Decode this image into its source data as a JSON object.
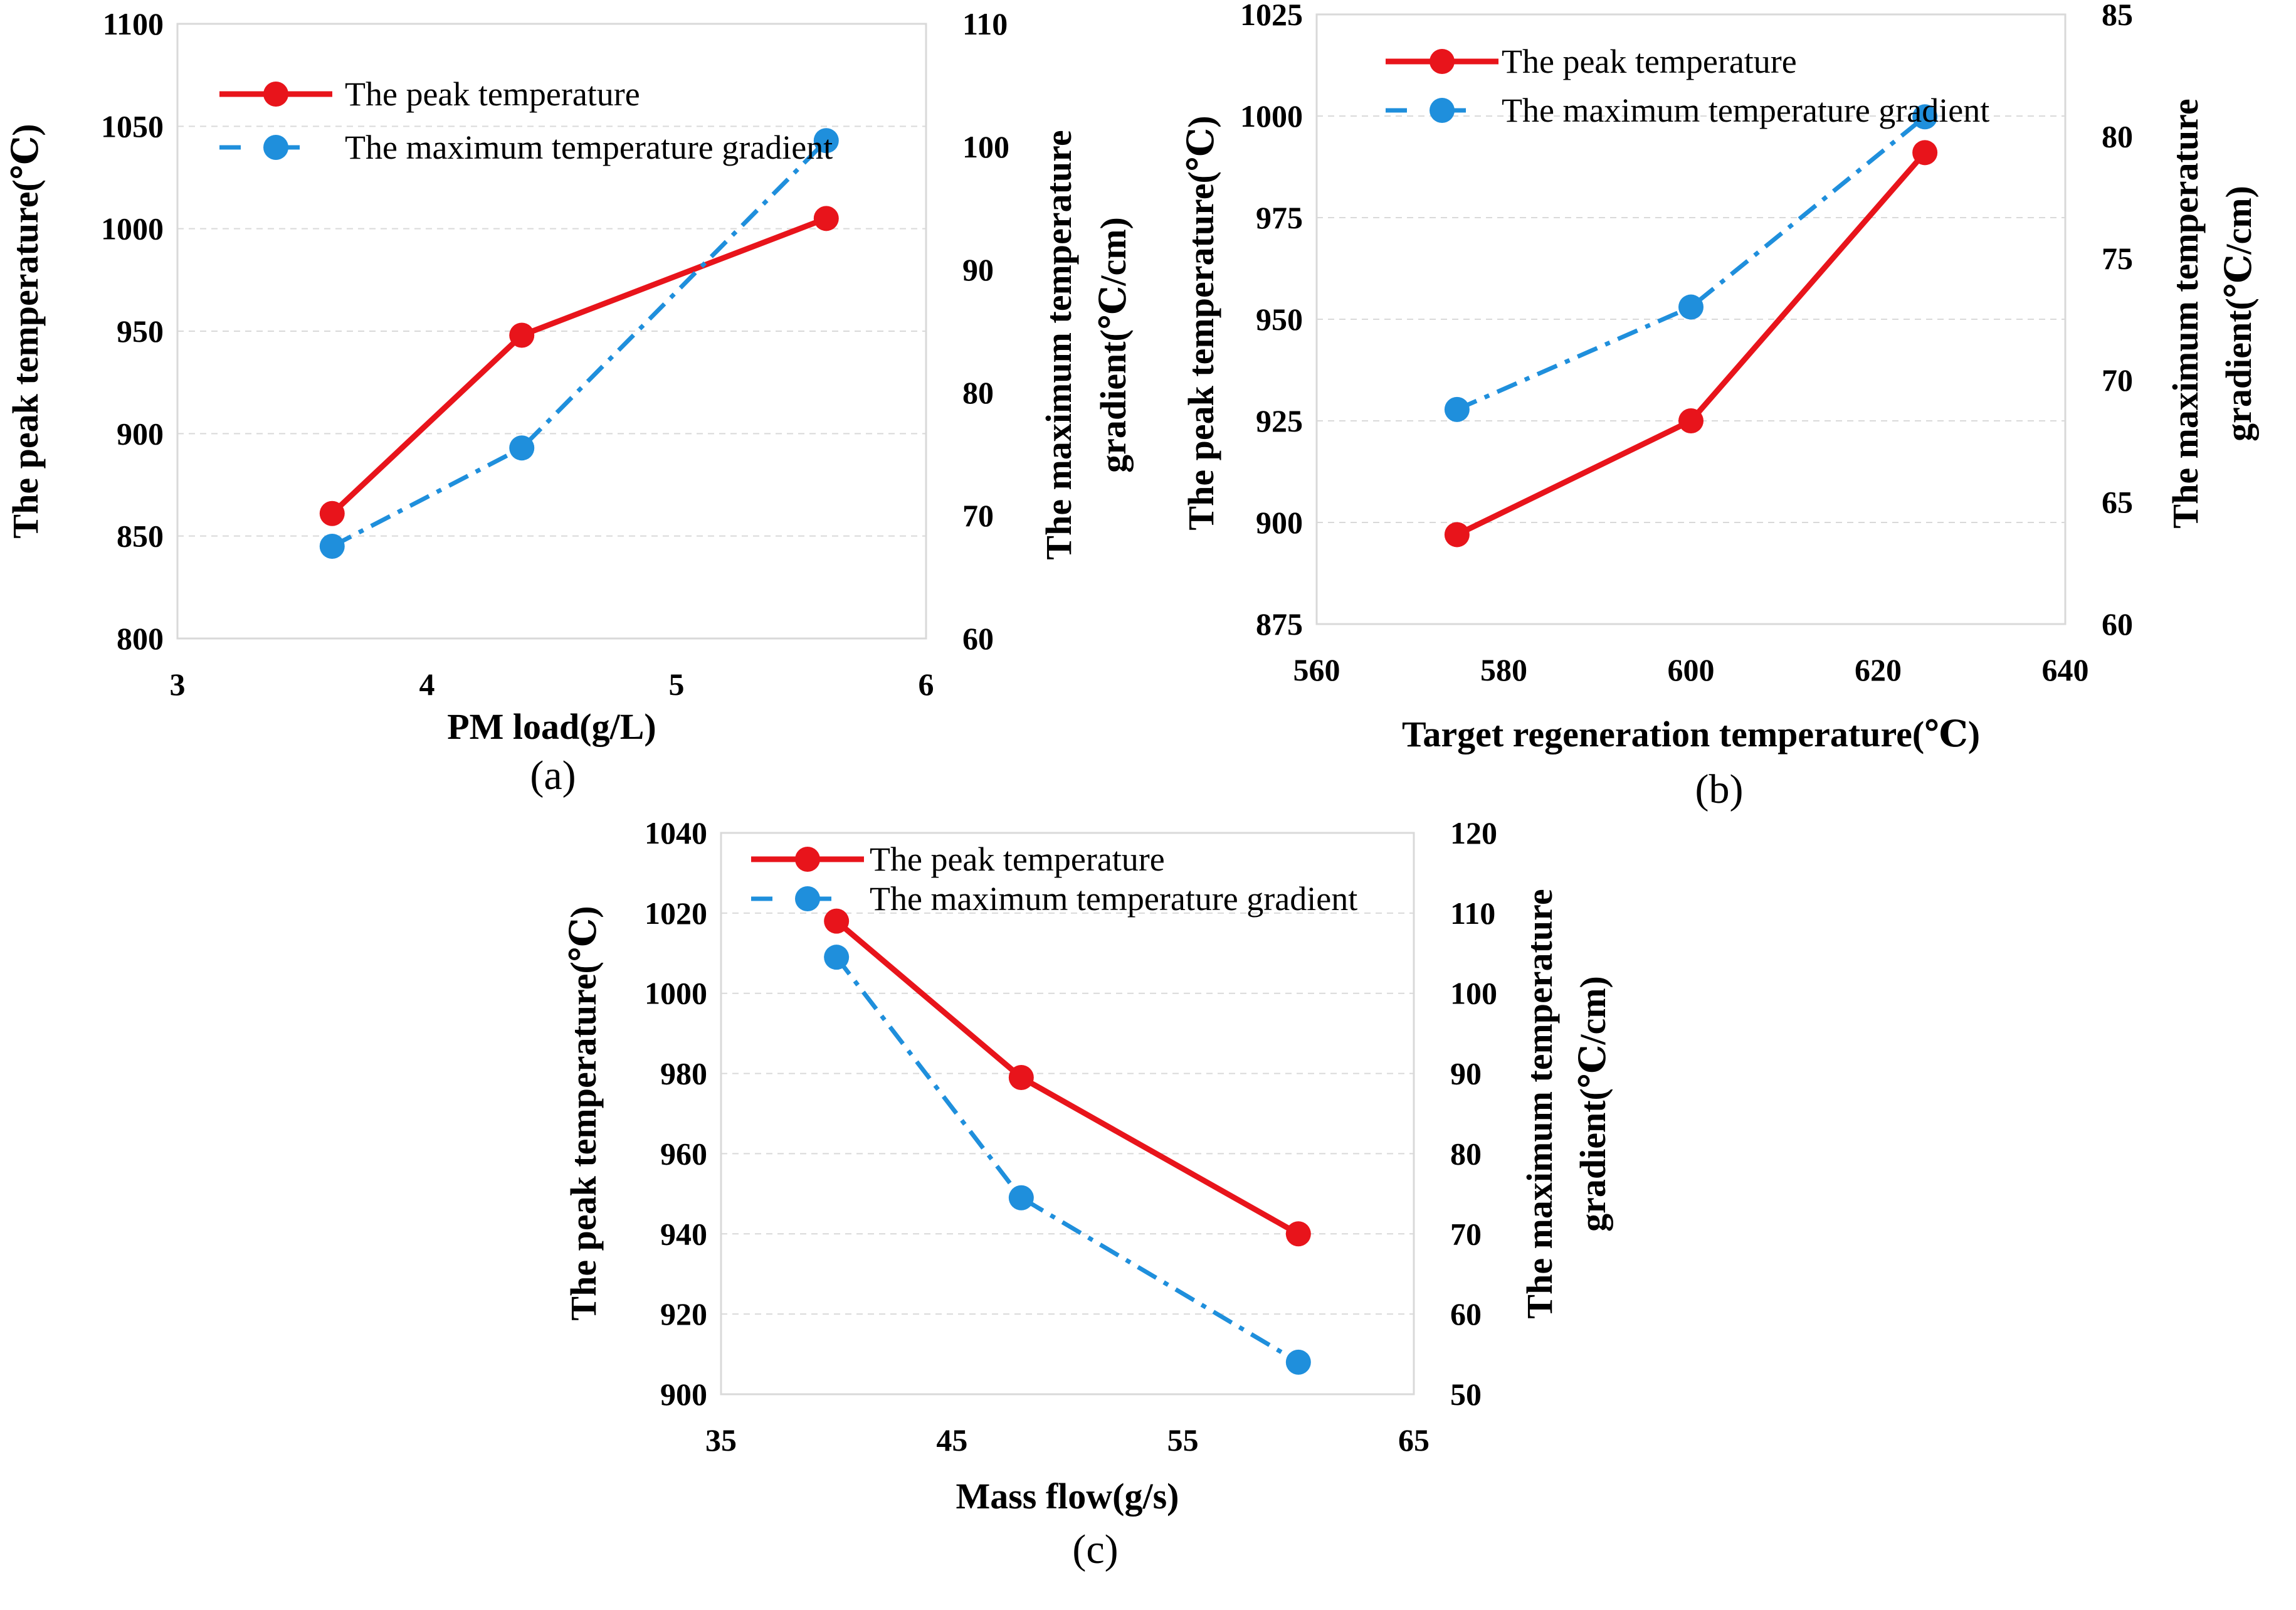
{
  "colors": {
    "peak": "#e8141b",
    "gradient": "#1f8fdc",
    "grid": "#d9d9d9",
    "frame": "#d9d9d9"
  },
  "chart_data": [
    {
      "type": "line",
      "panel_label": "(a)",
      "xlabel": "PM load(g/L)",
      "ylabel": "The peak temperature(℃)",
      "y2label_lines": [
        "The maximum temperature",
        "gradient(℃/cm)"
      ],
      "xlim": [
        3,
        6
      ],
      "xticks": [
        3,
        4,
        5,
        6
      ],
      "ylim": [
        800,
        1100
      ],
      "yticks": [
        800,
        850,
        900,
        950,
        1000,
        1050,
        1100
      ],
      "y2lim": [
        60,
        110
      ],
      "y2ticks": [
        60,
        70,
        80,
        90,
        100,
        110
      ],
      "legend_placement": "top-left",
      "series": [
        {
          "name": "The peak temperature",
          "axis": "left",
          "style": "solid",
          "color_key": "peak",
          "x": [
            3.62,
            4.38,
            5.6
          ],
          "y": [
            861,
            948,
            1005
          ]
        },
        {
          "name": "The maximum temperature gradient",
          "axis": "right",
          "style": "dashdot",
          "color_key": "gradient",
          "x": [
            3.62,
            4.38,
            5.6
          ],
          "y": [
            67.5,
            75.5,
            100.5
          ]
        }
      ]
    },
    {
      "type": "line",
      "panel_label": "(b)",
      "xlabel": "Target regeneration temperature(℃)",
      "ylabel": "The peak temperature(℃)",
      "y2label_lines": [
        "The maximum temperature",
        "gradient(℃/cm)"
      ],
      "xlim": [
        560,
        640
      ],
      "xticks": [
        560,
        580,
        600,
        620,
        640
      ],
      "ylim": [
        875,
        1025
      ],
      "yticks": [
        875,
        900,
        925,
        950,
        975,
        1000,
        1025
      ],
      "y2lim": [
        60,
        85
      ],
      "y2ticks": [
        60,
        65,
        70,
        75,
        80,
        85
      ],
      "legend_placement": "top-left",
      "series": [
        {
          "name": "The peak temperature",
          "axis": "left",
          "style": "solid",
          "color_key": "peak",
          "x": [
            575,
            600,
            625
          ],
          "y": [
            897,
            925,
            991
          ]
        },
        {
          "name": "The maximum temperature gradient",
          "axis": "right",
          "style": "dashdot",
          "color_key": "gradient",
          "x": [
            575,
            600,
            625
          ],
          "y": [
            68.8,
            73.0,
            80.8
          ]
        }
      ]
    },
    {
      "type": "line",
      "panel_label": "(c)",
      "xlabel": "Mass flow(g/s)",
      "ylabel": "The peak temperature(℃)",
      "y2label_lines": [
        "The maximum temperature",
        "gradient(℃/cm)"
      ],
      "xlim": [
        35,
        65
      ],
      "xticks": [
        35,
        45,
        55,
        65
      ],
      "ylim": [
        900,
        1040
      ],
      "yticks": [
        900,
        920,
        940,
        960,
        980,
        1000,
        1020,
        1040
      ],
      "y2lim": [
        50,
        120
      ],
      "y2ticks": [
        50,
        60,
        70,
        80,
        90,
        100,
        110,
        120
      ],
      "legend_placement": "top-left",
      "series": [
        {
          "name": "The peak temperature",
          "axis": "left",
          "style": "solid",
          "color_key": "peak",
          "x": [
            40,
            48,
            60
          ],
          "y": [
            1018,
            979,
            940
          ]
        },
        {
          "name": "The maximum temperature gradient",
          "axis": "right",
          "style": "dashdot",
          "color_key": "gradient",
          "x": [
            40,
            48,
            60
          ],
          "y": [
            104.5,
            74.5,
            54
          ]
        }
      ]
    }
  ]
}
